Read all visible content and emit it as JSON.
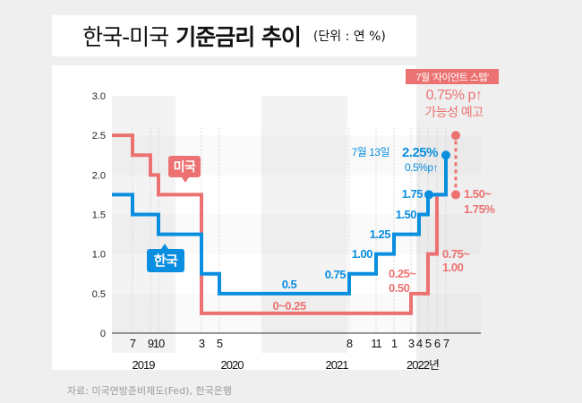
{
  "title": {
    "light": "한국-미국",
    "bold": "기준금리 추이",
    "unit": "(단위 : 연 %)"
  },
  "source": "자료: 미국연방준비제도(Fed), 한국은행",
  "colors": {
    "korea": "#0a8ee0",
    "us": "#ec7272",
    "background": "#efefef",
    "band": "#f3f3f3"
  },
  "chart_data": {
    "type": "line",
    "title": "한국-미국 기준금리 추이",
    "unit": "연 %",
    "ylim": [
      0,
      3.0
    ],
    "yticks": [
      "0",
      "0.5",
      "1.0",
      "1.5",
      "2.0",
      "2.5",
      "3.0"
    ],
    "ytick_values": [
      0,
      0.5,
      1.0,
      1.5,
      2.0,
      2.5,
      3.0
    ],
    "xticks": [
      {
        "label": "7",
        "month": "2019-07"
      },
      {
        "label": "9",
        "month": "2019-09"
      },
      {
        "label": "10",
        "month": "2019-10"
      },
      {
        "label": "3",
        "month": "2020-03"
      },
      {
        "label": "5",
        "month": "2020-05"
      },
      {
        "label": "8",
        "month": "2021-08"
      },
      {
        "label": "11",
        "month": "2021-11"
      },
      {
        "label": "1",
        "month": "2022-01"
      },
      {
        "label": "3",
        "month": "2022-03"
      },
      {
        "label": "4",
        "month": "2022-04"
      },
      {
        "label": "5",
        "month": "2022-05"
      },
      {
        "label": "6",
        "month": "2022-06"
      },
      {
        "label": "7",
        "month": "2022-07"
      }
    ],
    "years": [
      "2019",
      "2020",
      "2021",
      "2022년"
    ],
    "series": [
      {
        "name": "미국",
        "step_points": [
          {
            "x": "2019-01",
            "y": 2.5
          },
          {
            "x": "2019-07",
            "y": 2.25
          },
          {
            "x": "2019-09",
            "y": 2.0
          },
          {
            "x": "2019-10",
            "y": 1.75
          },
          {
            "x": "2020-03",
            "y": 0.25
          },
          {
            "x": "2022-03",
            "y": 0.5
          },
          {
            "x": "2022-05",
            "y": 1.0
          },
          {
            "x": "2022-06",
            "y": 1.75
          }
        ],
        "forecast": {
          "x": "2022-07",
          "y": 2.5
        },
        "labels": [
          "0~0.25",
          "0.25~\n0.50",
          "0.75~\n1.00",
          "1.50~\n1.75%"
        ]
      },
      {
        "name": "한국",
        "step_points": [
          {
            "x": "2019-01",
            "y": 1.75
          },
          {
            "x": "2019-07",
            "y": 1.5
          },
          {
            "x": "2019-10",
            "y": 1.25
          },
          {
            "x": "2020-03",
            "y": 0.75
          },
          {
            "x": "2020-05",
            "y": 0.5
          },
          {
            "x": "2021-08",
            "y": 0.75
          },
          {
            "x": "2021-11",
            "y": 1.0
          },
          {
            "x": "2022-01",
            "y": 1.25
          },
          {
            "x": "2022-04",
            "y": 1.5
          },
          {
            "x": "2022-05",
            "y": 1.75
          },
          {
            "x": "2022-07",
            "y": 2.25
          }
        ],
        "labels": [
          "0.5",
          "0.75",
          "1.00",
          "1.25",
          "1.50",
          "1.75",
          "2.25%"
        ]
      }
    ],
    "annotations": {
      "us_tag": "미국",
      "korea_tag": "한국",
      "giant_step_badge": "7월 '자이언트 스텝'",
      "giant_step_line1": "0.75% p↑",
      "giant_step_line2": "가능성 예고",
      "korea_date": "7월 13일",
      "korea_value": "2.25%",
      "korea_change": "0.5%p↑",
      "us_low": "0~0.25",
      "us_025_a": "0.25~",
      "us_025_b": "0.50",
      "us_075_a": "0.75~",
      "us_075_b": "1.00",
      "us_150_a": "1.50~",
      "us_150_b": "1.75%",
      "kr_05": "0.5",
      "kr_075": "0.75",
      "kr_100": "1.00",
      "kr_125": "1.25",
      "kr_150": "1.50",
      "kr_175": "1.75"
    }
  }
}
